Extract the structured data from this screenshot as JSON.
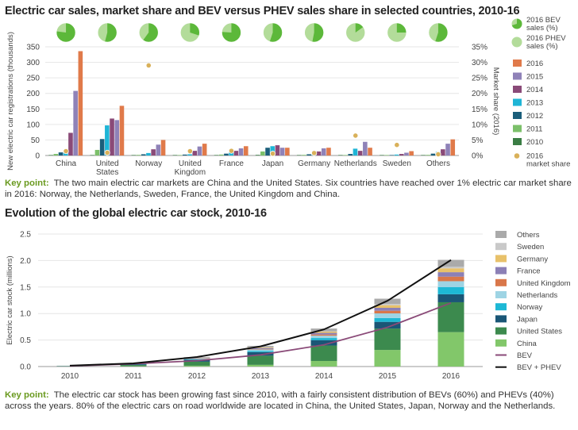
{
  "chart_data": [
    {
      "type": "bar",
      "title": "Electric car sales, market share and BEV versus PHEV sales share in selected countries, 2010-16",
      "ylabel": "New electric car registrations (thousands)",
      "y2label": "Market share (2016)",
      "ylim": [
        0,
        350
      ],
      "yticks": [
        0,
        50,
        100,
        150,
        200,
        250,
        300,
        350
      ],
      "y2lim": [
        0,
        35
      ],
      "y2ticks": [
        "0%",
        "5%",
        "10%",
        "15%",
        "20%",
        "25%",
        "30%",
        "35%"
      ],
      "grid": true,
      "legend_position": "right",
      "categories": [
        "China",
        "United States",
        "Norway",
        "United Kingdom",
        "France",
        "Japan",
        "Germany",
        "Netherlands",
        "Sweden",
        "Others"
      ],
      "category_labels": [
        [
          "China"
        ],
        [
          "United",
          "States"
        ],
        [
          "Norway"
        ],
        [
          "United",
          "Kingdom"
        ],
        [
          "France"
        ],
        [
          "Japan"
        ],
        [
          "Germany"
        ],
        [
          "Netherlands"
        ],
        [
          "Sweden"
        ],
        [
          "Others"
        ]
      ],
      "series": [
        {
          "name": "2010",
          "color": "#3a7d44",
          "values": [
            1,
            0.5,
            0.5,
            0.2,
            0.1,
            2,
            0.5,
            0.1,
            0.1,
            0.5
          ]
        },
        {
          "name": "2011",
          "color": "#7cc06a",
          "values": [
            5,
            18,
            2,
            1,
            3,
            13,
            2,
            1,
            0.2,
            2
          ]
        },
        {
          "name": "2012",
          "color": "#1b5e7a",
          "values": [
            10,
            53,
            4,
            3,
            6,
            25,
            4,
            5,
            1,
            6
          ]
        },
        {
          "name": "2013",
          "color": "#1fb5d6",
          "values": [
            15,
            97,
            8,
            4,
            11,
            30,
            8,
            22,
            3,
            12
          ]
        },
        {
          "name": "2014",
          "color": "#8a4a78",
          "values": [
            73,
            119,
            20,
            15,
            15,
            33,
            13,
            15,
            5,
            20
          ]
        },
        {
          "name": "2015",
          "color": "#8f82b8",
          "values": [
            208,
            114,
            35,
            29,
            23,
            25,
            23,
            44,
            9,
            38
          ]
        },
        {
          "name": "2016",
          "color": "#e07a4a",
          "values": [
            336,
            160,
            50,
            38,
            30,
            25,
            25,
            25,
            14,
            52
          ]
        }
      ],
      "market_share_2016": {
        "name": "2016 market share",
        "color": "#d9b15a",
        "values": [
          1.4,
          0.9,
          29,
          1.4,
          1.5,
          0.6,
          0.8,
          6.4,
          3.4,
          0.4
        ]
      },
      "pie_share": {
        "series": [
          "2016 BEV sales (%)",
          "2016 PHEV sales (%)"
        ],
        "colors": [
          "#5cb83a",
          "#b3dc9a"
        ],
        "bev": [
          77,
          54,
          60,
          30,
          76,
          55,
          53,
          15,
          25,
          55
        ]
      },
      "legend": {
        "pie_bev": "2016 BEV sales (%)",
        "pie_phev": "2016 PHEV sales (%)",
        "bars": [
          "2016",
          "2015",
          "2014",
          "2013",
          "2012",
          "2011",
          "2010"
        ],
        "dot": "2016 market share"
      }
    },
    {
      "type": "bar",
      "stacked": true,
      "title": "Evolution of the global electric car stock, 2010-16",
      "ylabel": "Electric car stock (millions)",
      "ylim": [
        0,
        2.5
      ],
      "yticks": [
        "0.0",
        "0.5",
        "1.0",
        "1.5",
        "2.0",
        "2.5"
      ],
      "grid": true,
      "legend_position": "right",
      "categories": [
        "2010",
        "2011",
        "2012",
        "2013",
        "2014",
        "2015",
        "2016"
      ],
      "series": [
        {
          "name": "China",
          "color": "#82c76a",
          "values": [
            0.001,
            0.006,
            0.016,
            0.032,
            0.105,
            0.313,
            0.649
          ]
        },
        {
          "name": "United States",
          "color": "#3c8a4e",
          "values": [
            0.004,
            0.022,
            0.075,
            0.172,
            0.291,
            0.404,
            0.564
          ]
        },
        {
          "name": "Japan",
          "color": "#1a5676",
          "values": [
            0.002,
            0.015,
            0.039,
            0.069,
            0.102,
            0.126,
            0.151
          ]
        },
        {
          "name": "Norway",
          "color": "#1db8d5",
          "values": [
            0.003,
            0.005,
            0.01,
            0.02,
            0.04,
            0.072,
            0.133
          ]
        },
        {
          "name": "Netherlands",
          "color": "#9ed4e4",
          "values": [
            0.0003,
            0.001,
            0.007,
            0.029,
            0.044,
            0.088,
            0.113
          ]
        },
        {
          "name": "United Kingdom",
          "color": "#d9774a",
          "values": [
            0.001,
            0.002,
            0.004,
            0.008,
            0.022,
            0.05,
            0.086
          ]
        },
        {
          "name": "France",
          "color": "#8c80b6",
          "values": [
            0.001,
            0.003,
            0.009,
            0.019,
            0.031,
            0.055,
            0.084
          ]
        },
        {
          "name": "Germany",
          "color": "#e8c16a",
          "values": [
            0.001,
            0.002,
            0.005,
            0.012,
            0.024,
            0.049,
            0.073
          ]
        },
        {
          "name": "Sweden",
          "color": "#c9c9c9",
          "values": [
            0.0001,
            0.0002,
            0.001,
            0.004,
            0.008,
            0.024,
            0.029
          ]
        },
        {
          "name": "Others",
          "color": "#aaaaaa",
          "values": [
            0.002,
            0.004,
            0.012,
            0.025,
            0.05,
            0.099,
            0.131
          ]
        }
      ],
      "lines": [
        {
          "name": "BEV",
          "color": "#8a4a78",
          "values": [
            0.01,
            0.05,
            0.11,
            0.22,
            0.41,
            0.74,
            1.2
          ]
        },
        {
          "name": "BEV + PHEV",
          "color": "#111111",
          "values": [
            0.017,
            0.06,
            0.18,
            0.38,
            0.7,
            1.24,
            2.01
          ]
        }
      ],
      "legend": [
        "Others",
        "Sweden",
        "Germany",
        "France",
        "United Kingdom",
        "Netherlands",
        "Norway",
        "Japan",
        "United States",
        "China",
        "BEV",
        "BEV + PHEV"
      ]
    }
  ],
  "text": {
    "title1": "Electric car sales, market share and BEV versus PHEV sales share in selected countries, 2010-16",
    "title2": "Evolution of the global electric car stock, 2010-16",
    "keypoint_label": "Key point:",
    "keypoint1": "The two main electric car markets are China and the United States. Six countries have reached over 1% electric car market share in 2016: Norway, the Netherlands, Sweden, France, the United Kingdom and China.",
    "keypoint2": "The electric car stock has been growing fast since 2010, with a fairly consistent distribution of BEVs (60%) and PHEVs (40%) across the years. 80% of the electric cars on road worldwide are located in China, the United States, Japan, Norway and the Netherlands."
  }
}
